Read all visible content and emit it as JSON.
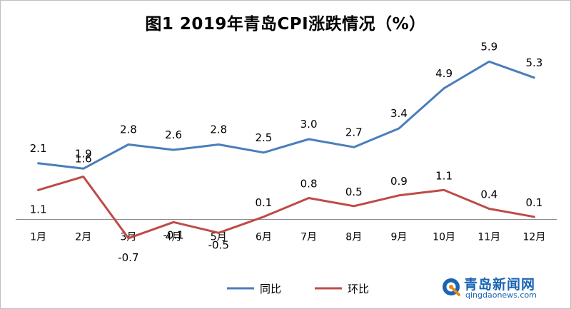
{
  "chart_data": {
    "type": "line",
    "title": "图1    2019年青岛CPI涨跌情况（%）",
    "categories": [
      "1月",
      "2月",
      "3月",
      "4月",
      "5月",
      "6月",
      "7月",
      "8月",
      "9月",
      "10月",
      "11月",
      "12月"
    ],
    "series": [
      {
        "name": "同比",
        "color": "#4a7ebb",
        "values": [
          2.1,
          1.9,
          2.8,
          2.6,
          2.8,
          2.5,
          3.0,
          2.7,
          3.4,
          4.9,
          5.9,
          5.3
        ]
      },
      {
        "name": "环比",
        "color": "#be4b48",
        "values": [
          1.1,
          1.6,
          -0.7,
          -0.1,
          -0.5,
          0.1,
          0.8,
          0.5,
          0.9,
          1.1,
          0.4,
          0.1
        ]
      }
    ],
    "value_labels": [
      [
        "2.1",
        "1.9",
        "2.8",
        "2.6",
        "2.8",
        "2.5",
        "3.0",
        "2.7",
        "3.4",
        "4.9",
        "5.9",
        "5.3"
      ],
      [
        "1.1",
        "1.6",
        "-0.7",
        "-0.1",
        "-0.5",
        "0.1",
        "0.8",
        "0.5",
        "0.9",
        "1.1",
        "0.4",
        "0.1"
      ]
    ],
    "ylim": [
      -1,
      6.6
    ],
    "grid": false,
    "legend_position": "bottom"
  },
  "watermark": {
    "text": "青岛新闻网",
    "sub": "qingdaonews.com",
    "color": "#1a64b4"
  }
}
